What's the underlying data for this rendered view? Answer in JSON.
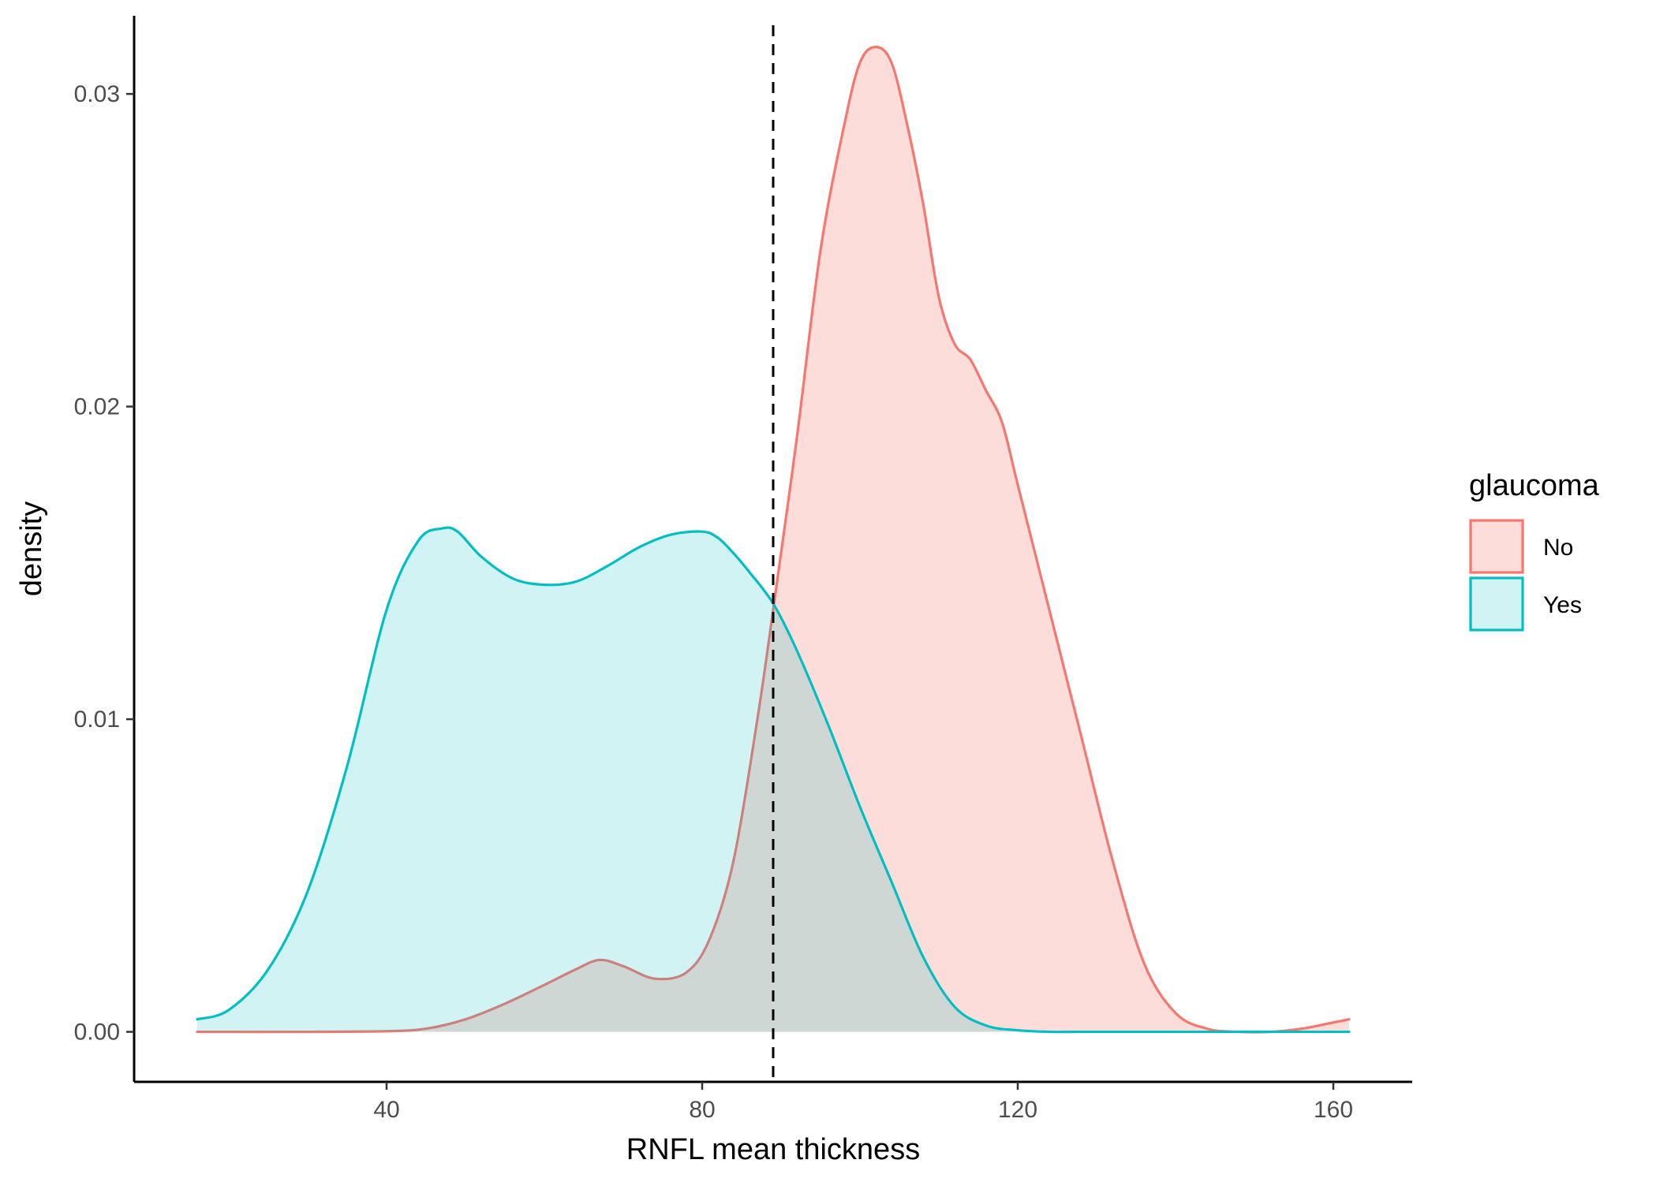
{
  "chart_data": {
    "type": "area",
    "xlabel": "RNFL mean thickness",
    "ylabel": "density",
    "xlim": [
      8,
      170
    ],
    "ylim": [
      -0.0016,
      0.0325
    ],
    "x_ticks": [
      40,
      80,
      120,
      160
    ],
    "x_tick_labels": [
      "40",
      "80",
      "120",
      "160"
    ],
    "y_ticks": [
      0.0,
      0.01,
      0.02,
      0.03
    ],
    "y_tick_labels": [
      "0.00",
      "0.01",
      "0.02",
      "0.03"
    ],
    "grid": false,
    "legend": {
      "title": "glaucoma",
      "position": "right"
    },
    "vline": {
      "x": 89,
      "style": "dashed",
      "color": "#000000"
    },
    "series": [
      {
        "name": "No",
        "color": "#F8766D",
        "fill": "#F8766D",
        "fill_opacity": 0.25,
        "x": [
          16,
          30,
          40,
          45,
          50,
          55,
          60,
          64,
          67,
          70,
          74,
          78,
          81,
          84,
          87,
          89,
          92,
          95,
          98,
          100,
          102,
          104,
          106,
          108,
          110,
          112,
          114,
          116,
          118,
          120,
          124,
          128,
          132,
          136,
          140,
          144,
          148,
          152,
          156,
          160,
          162
        ],
        "y": [
          0.0,
          0.0,
          2e-05,
          0.0001,
          0.0004,
          0.0009,
          0.0015,
          0.002,
          0.0023,
          0.0021,
          0.0017,
          0.0019,
          0.003,
          0.0055,
          0.01,
          0.0135,
          0.019,
          0.025,
          0.029,
          0.031,
          0.0315,
          0.031,
          0.029,
          0.0265,
          0.0235,
          0.022,
          0.0215,
          0.0205,
          0.0195,
          0.0175,
          0.0135,
          0.0095,
          0.0055,
          0.0022,
          0.0006,
          0.0001,
          0.0,
          0.0,
          0.0001,
          0.0003,
          0.0004
        ]
      },
      {
        "name": "Yes",
        "color": "#00BFC4",
        "fill": "#00BFC4",
        "fill_opacity": 0.18,
        "x": [
          16,
          20,
          25,
          30,
          35,
          40,
          44,
          47,
          49,
          52,
          56,
          60,
          64,
          68,
          72,
          76,
          80,
          82,
          84,
          86,
          89,
          92,
          96,
          100,
          104,
          108,
          112,
          116,
          120,
          124,
          128,
          132,
          136,
          140,
          145,
          150,
          155,
          162
        ],
        "y": [
          0.0004,
          0.0007,
          0.002,
          0.0045,
          0.0085,
          0.0135,
          0.0157,
          0.0161,
          0.016,
          0.0152,
          0.0145,
          0.0143,
          0.0144,
          0.0149,
          0.0155,
          0.0159,
          0.016,
          0.0158,
          0.0153,
          0.0147,
          0.0137,
          0.0122,
          0.0098,
          0.0072,
          0.0048,
          0.0024,
          0.0008,
          0.0002,
          5e-05,
          0.0,
          0.0,
          0.0,
          0.0,
          0.0,
          0.0,
          0.0,
          0.0,
          0.0
        ]
      }
    ]
  }
}
